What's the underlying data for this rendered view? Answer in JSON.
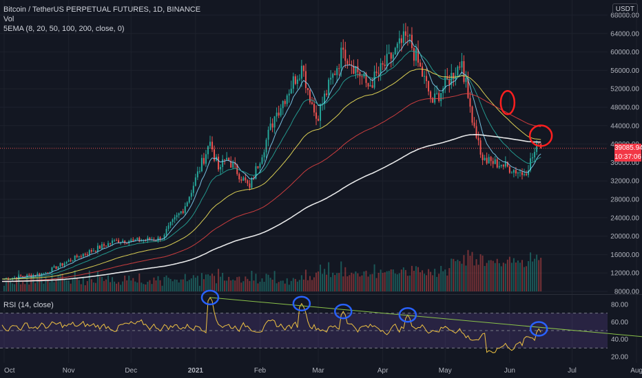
{
  "header": {
    "title": "Bitcoin / TetherUS PERPETUAL FUTURES, 1D, BINANCE",
    "vol_label": "Vol",
    "ema_label": "5EMA (8, 20, 50, 100, 200, close, 0)",
    "currency": "USDT"
  },
  "price_badge": {
    "price": "39085.94",
    "countdown": "10:37:06",
    "color": "#f23645"
  },
  "rsi_label": "RSI (14, close)",
  "colors": {
    "up": "#26a69a",
    "down": "#ef5350",
    "ema8": "#7fd3f5",
    "ema20": "#26a69a",
    "ema50": "#f2e35a",
    "ema100": "#e04141",
    "ema200": "#ffffff",
    "rsi": "#f0c343",
    "rsi_band": "#7e57c2",
    "trendline": "#8bc34a",
    "circle_red": "#ff1f1f",
    "circle_blue": "#2962ff"
  },
  "chart_data": [
    {
      "type": "candlestick",
      "title": "Bitcoin / TetherUS PERPETUAL FUTURES, 1D, BINANCE",
      "x_ticks": [
        "Oct",
        "Nov",
        "Dec",
        "2021",
        "Feb",
        "Mar",
        "Apr",
        "May",
        "Jun",
        "Jul",
        "Aug"
      ],
      "y_ticks": [
        8000,
        12000,
        16000,
        20000,
        24000,
        28000,
        32000,
        36000,
        40000,
        44000,
        48000,
        52000,
        56000,
        60000,
        64000,
        68000
      ],
      "ylim": [
        6000,
        70000
      ],
      "close_anchors": [
        {
          "date": "2020-10-01",
          "close": 10700
        },
        {
          "date": "2020-10-20",
          "close": 11900
        },
        {
          "date": "2020-11-05",
          "close": 15500
        },
        {
          "date": "2020-11-24",
          "close": 19100
        },
        {
          "date": "2020-12-02",
          "close": 19000
        },
        {
          "date": "2020-12-15",
          "close": 19400
        },
        {
          "date": "2020-12-27",
          "close": 26500
        },
        {
          "date": "2021-01-08",
          "close": 40500
        },
        {
          "date": "2021-01-12",
          "close": 34500
        },
        {
          "date": "2021-01-16",
          "close": 37000
        },
        {
          "date": "2021-01-27",
          "close": 30500
        },
        {
          "date": "2021-02-08",
          "close": 46000
        },
        {
          "date": "2021-02-21",
          "close": 57000
        },
        {
          "date": "2021-02-28",
          "close": 45500
        },
        {
          "date": "2021-03-13",
          "close": 60500
        },
        {
          "date": "2021-03-25",
          "close": 52500
        },
        {
          "date": "2021-04-13",
          "close": 63500
        },
        {
          "date": "2021-04-25",
          "close": 49000
        },
        {
          "date": "2021-05-09",
          "close": 58000
        },
        {
          "date": "2021-05-12",
          "close": 50000
        },
        {
          "date": "2021-05-19",
          "close": 36500
        },
        {
          "date": "2021-05-28",
          "close": 35500
        },
        {
          "date": "2021-06-08",
          "close": 33500
        },
        {
          "date": "2021-06-15",
          "close": 40000
        },
        {
          "date": "2021-06-16",
          "close": 39085.94
        }
      ],
      "ema_series": [
        {
          "name": "EMA 8",
          "color_key": "ema8"
        },
        {
          "name": "EMA 20",
          "color_key": "ema20"
        },
        {
          "name": "EMA 50",
          "color_key": "ema50"
        },
        {
          "name": "EMA 100",
          "color_key": "ema100"
        },
        {
          "name": "EMA 200",
          "color_key": "ema200"
        }
      ],
      "current_price": 39085.94
    },
    {
      "type": "line",
      "title": "RSI (14, close)",
      "y_ticks": [
        20,
        40,
        60,
        80
      ],
      "ylim": [
        15,
        90
      ],
      "bands": [
        30,
        50,
        70
      ],
      "peaks": [
        {
          "date": "2021-01-08",
          "value": 88
        },
        {
          "date": "2021-02-21",
          "value": 81
        },
        {
          "date": "2021-03-13",
          "value": 72
        },
        {
          "date": "2021-04-13",
          "value": 68
        },
        {
          "date": "2021-06-15",
          "value": 52
        }
      ],
      "trendline": {
        "from": {
          "date": "2021-01-08",
          "value": 88
        },
        "to": {
          "date": "2021-08-18",
          "value": 40
        }
      }
    }
  ]
}
